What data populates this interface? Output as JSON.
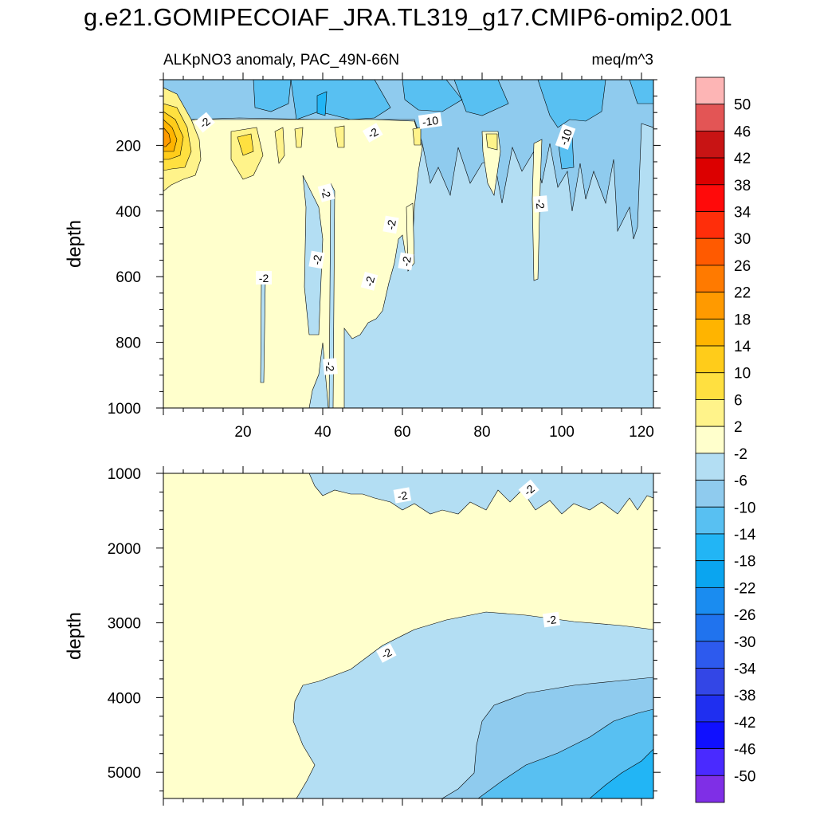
{
  "title": "g.e21.GOMIPECOIAF_JRA.TL319_g17.CMIP6-omip2.001",
  "chart_data": [
    {
      "type": "contour",
      "panel": "upper",
      "left_title": "ALKpNO3 anomaly, PAC_49N-66N",
      "right_title": "meq/m^3",
      "xlabel": "",
      "ylabel": "depth",
      "xlim": [
        0,
        123
      ],
      "ylim": [
        1000,
        0
      ],
      "xticks": [
        20,
        40,
        60,
        80,
        100,
        120
      ],
      "yticks": [
        200,
        400,
        600,
        800,
        1000
      ],
      "contour_labels": [
        {
          "text": "-2",
          "x": 13,
          "y": 95
        },
        {
          "text": "-10",
          "x": 66,
          "y": 85
        },
        {
          "text": "-2",
          "x": 53,
          "y": 110
        },
        {
          "text": "-10",
          "x": 101,
          "y": 125
        },
        {
          "text": "-2",
          "x": 41,
          "y": 330
        },
        {
          "text": "-2",
          "x": 93,
          "y": 355
        },
        {
          "text": "-2",
          "x": 57,
          "y": 425
        },
        {
          "text": "-2",
          "x": 39,
          "y": 525
        },
        {
          "text": "-2",
          "x": 61,
          "y": 525
        },
        {
          "text": "-2",
          "x": 26,
          "y": 605
        },
        {
          "text": "-2",
          "x": 52,
          "y": 595
        },
        {
          "text": "-2",
          "x": 43,
          "y": 875
        }
      ]
    },
    {
      "type": "contour",
      "panel": "lower",
      "xlabel": "",
      "ylabel": "depth",
      "xlim": [
        0,
        123
      ],
      "ylim": [
        5350,
        1000
      ],
      "yticks": [
        1000,
        2000,
        3000,
        4000,
        5000
      ],
      "contour_labels": [
        {
          "text": "-2",
          "x": 60,
          "y": 1280
        },
        {
          "text": "-2",
          "x": 92,
          "y": 1230
        },
        {
          "text": "-2",
          "x": 97,
          "y": 2970
        },
        {
          "text": "-2",
          "x": 56,
          "y": 3400
        }
      ]
    }
  ],
  "colorbar": {
    "labels": [
      "50",
      "46",
      "42",
      "38",
      "34",
      "30",
      "26",
      "22",
      "18",
      "14",
      "10",
      "6",
      "2",
      "-2",
      "-6",
      "-10",
      "-14",
      "-18",
      "-22",
      "-26",
      "-30",
      "-34",
      "-38",
      "-42",
      "-46",
      "-50"
    ],
    "colors": [
      "#fdb5b5",
      "#e35555",
      "#c81414",
      "#dc0000",
      "#ff0a0a",
      "#ff2e0a",
      "#ff5a00",
      "#ff7a00",
      "#ff9a00",
      "#ffb400",
      "#ffcc1a",
      "#ffe040",
      "#fff38a",
      "#ffffcc",
      "#b3def3",
      "#8fcbee",
      "#58c0f2",
      "#22b5f5",
      "#0aa5f0",
      "#1a8cf0",
      "#2073ee",
      "#2d5aee",
      "#3346e6",
      "#1f2ff0",
      "#1010ff",
      "#4a2aff",
      "#7f2fe6"
    ]
  }
}
